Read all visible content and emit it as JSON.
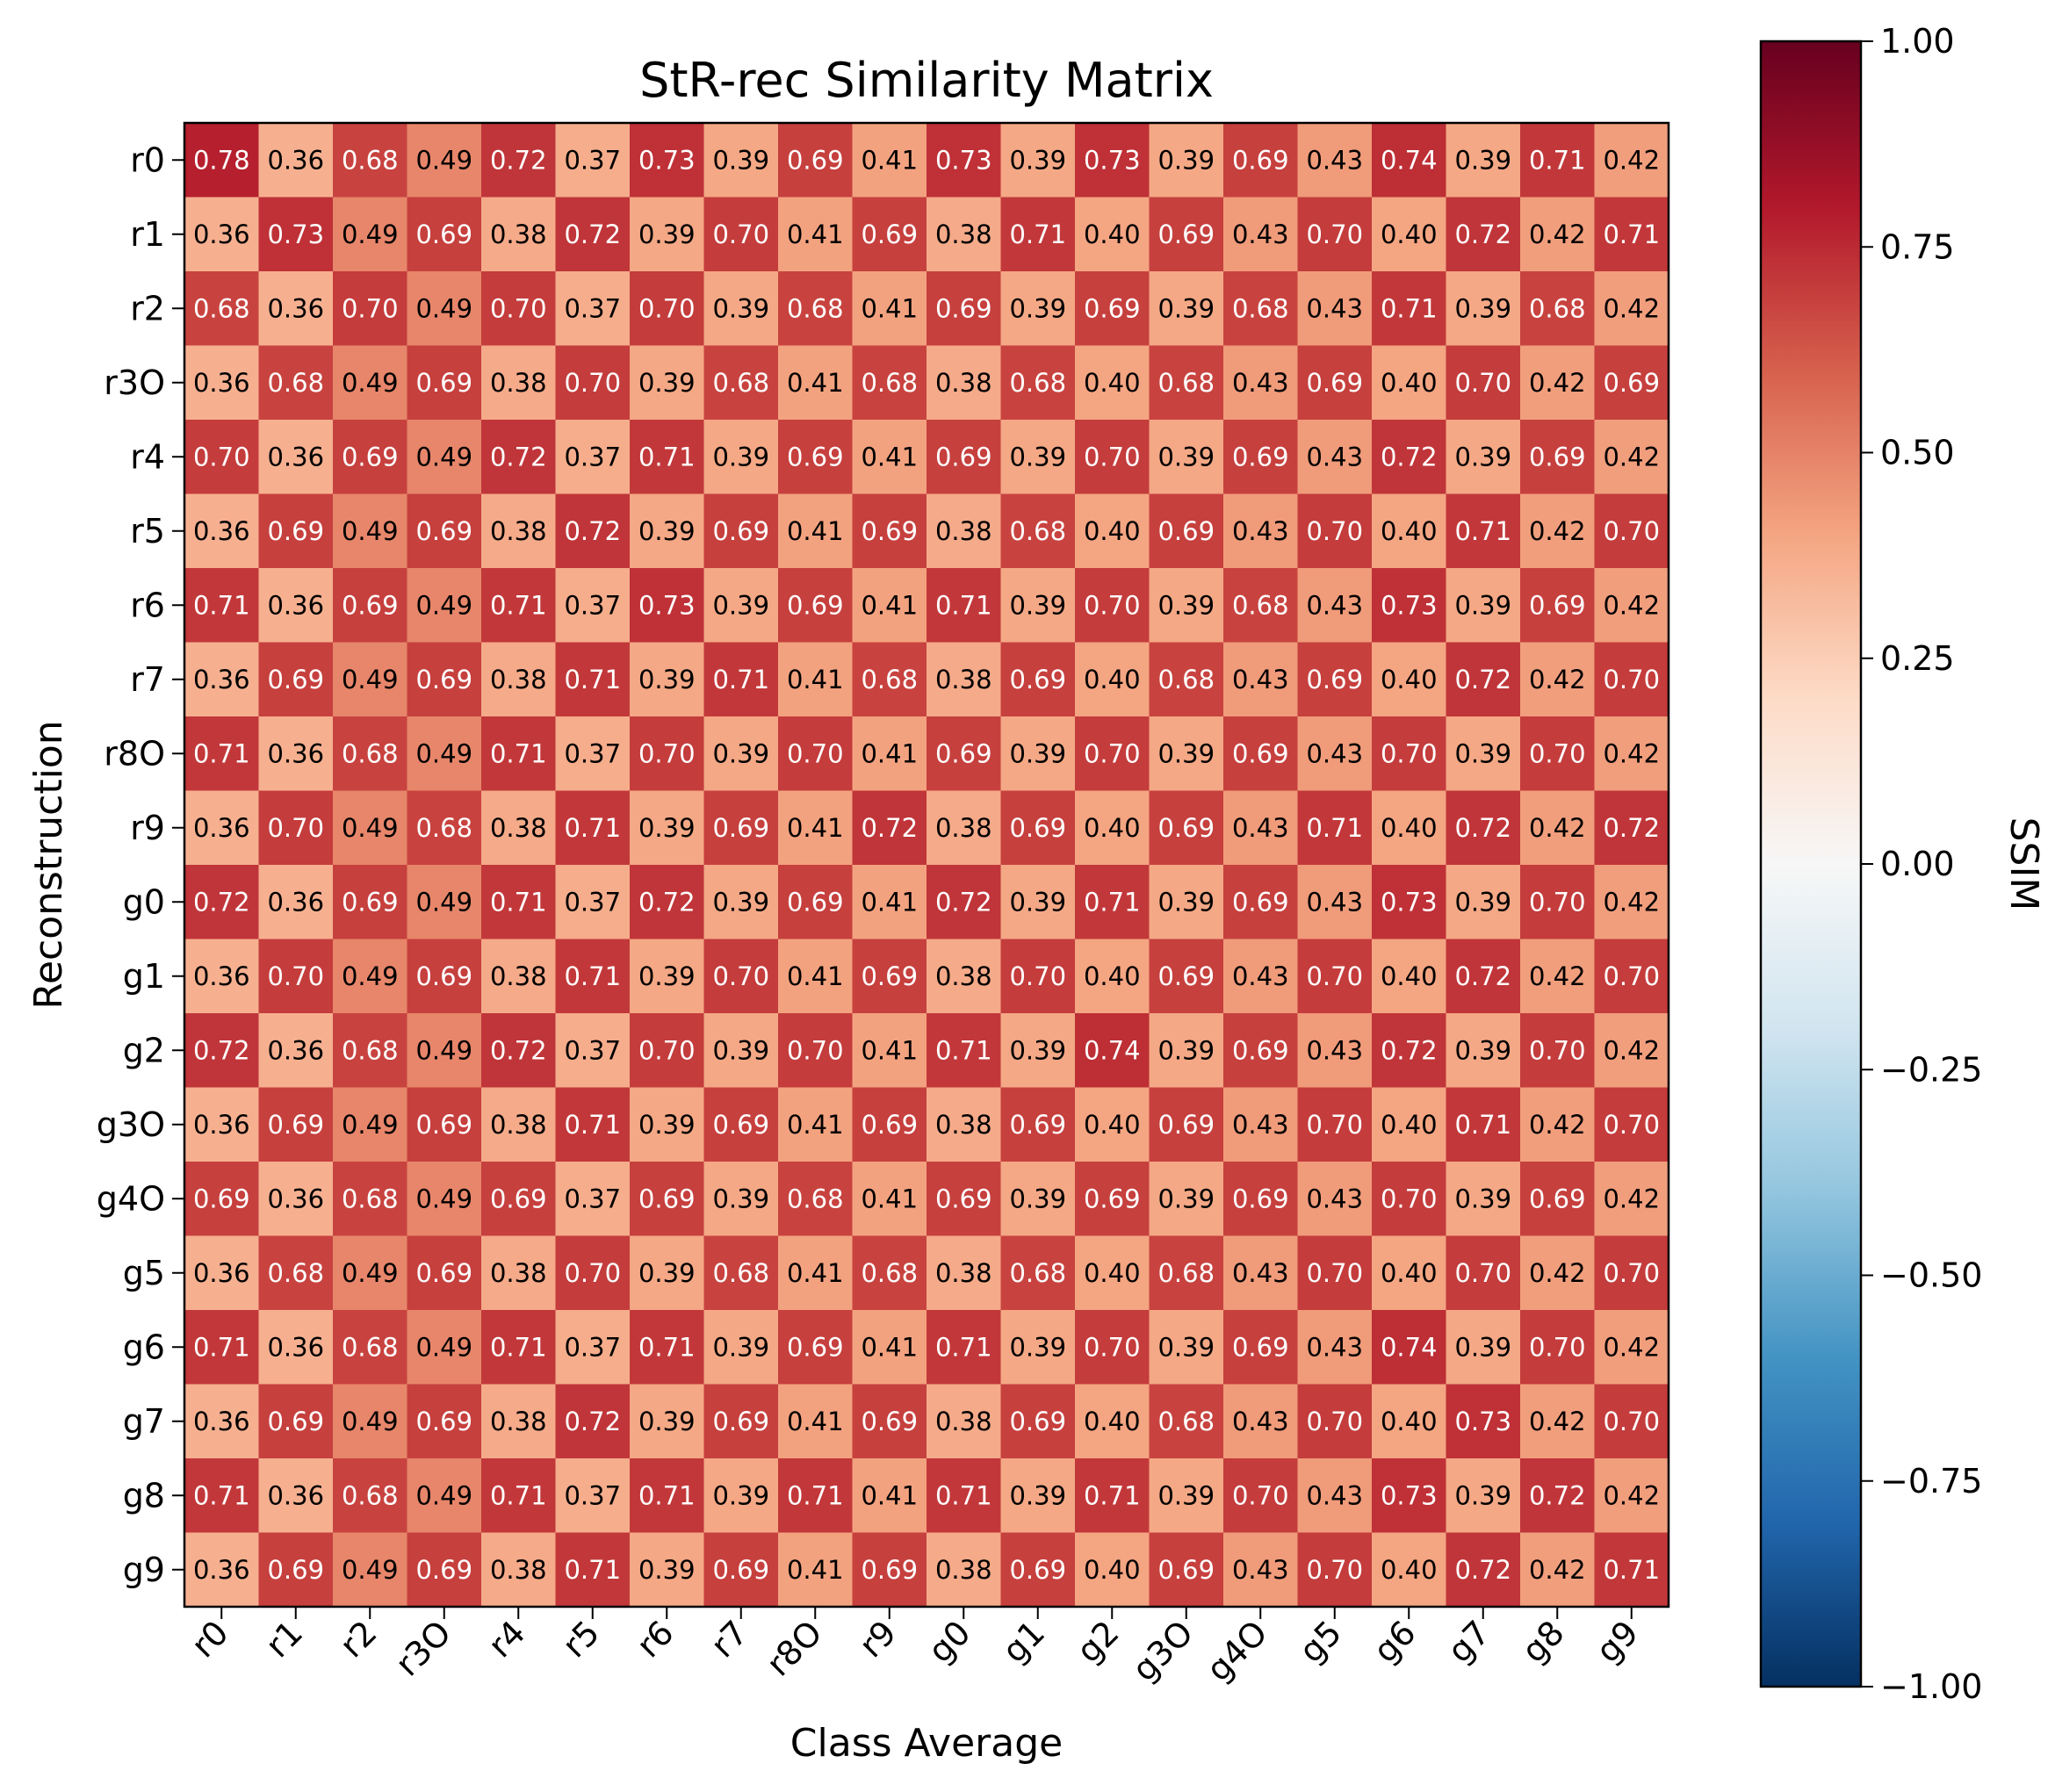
{
  "chart_data": {
    "type": "heatmap",
    "title": "StR-rec Similarity Matrix",
    "xlabel": "Class Average",
    "ylabel": "Reconstruction",
    "x_categories": [
      "r0",
      "r1",
      "r2",
      "r3O",
      "r4",
      "r5",
      "r6",
      "r7",
      "r8O",
      "r9",
      "g0",
      "g1",
      "g2",
      "g3O",
      "g4O",
      "g5",
      "g6",
      "g7",
      "g8",
      "g9"
    ],
    "y_categories": [
      "r0",
      "r1",
      "r2",
      "r3O",
      "r4",
      "r5",
      "r6",
      "r7",
      "r8O",
      "r9",
      "g0",
      "g1",
      "g2",
      "g3O",
      "g4O",
      "g5",
      "g6",
      "g7",
      "g8",
      "g9"
    ],
    "values": [
      [
        0.78,
        0.36,
        0.68,
        0.49,
        0.72,
        0.37,
        0.73,
        0.39,
        0.69,
        0.41,
        0.73,
        0.39,
        0.73,
        0.39,
        0.69,
        0.43,
        0.74,
        0.39,
        0.71,
        0.42
      ],
      [
        0.36,
        0.73,
        0.49,
        0.69,
        0.38,
        0.72,
        0.39,
        0.7,
        0.41,
        0.69,
        0.38,
        0.71,
        0.4,
        0.69,
        0.43,
        0.7,
        0.4,
        0.72,
        0.42,
        0.71
      ],
      [
        0.68,
        0.36,
        0.7,
        0.49,
        0.7,
        0.37,
        0.7,
        0.39,
        0.68,
        0.41,
        0.69,
        0.39,
        0.69,
        0.39,
        0.68,
        0.43,
        0.71,
        0.39,
        0.68,
        0.42
      ],
      [
        0.36,
        0.68,
        0.49,
        0.69,
        0.38,
        0.7,
        0.39,
        0.68,
        0.41,
        0.68,
        0.38,
        0.68,
        0.4,
        0.68,
        0.43,
        0.69,
        0.4,
        0.7,
        0.42,
        0.69
      ],
      [
        0.7,
        0.36,
        0.69,
        0.49,
        0.72,
        0.37,
        0.71,
        0.39,
        0.69,
        0.41,
        0.69,
        0.39,
        0.7,
        0.39,
        0.69,
        0.43,
        0.72,
        0.39,
        0.69,
        0.42
      ],
      [
        0.36,
        0.69,
        0.49,
        0.69,
        0.38,
        0.72,
        0.39,
        0.69,
        0.41,
        0.69,
        0.38,
        0.68,
        0.4,
        0.69,
        0.43,
        0.7,
        0.4,
        0.71,
        0.42,
        0.7
      ],
      [
        0.71,
        0.36,
        0.69,
        0.49,
        0.71,
        0.37,
        0.73,
        0.39,
        0.69,
        0.41,
        0.71,
        0.39,
        0.7,
        0.39,
        0.68,
        0.43,
        0.73,
        0.39,
        0.69,
        0.42
      ],
      [
        0.36,
        0.69,
        0.49,
        0.69,
        0.38,
        0.71,
        0.39,
        0.71,
        0.41,
        0.68,
        0.38,
        0.69,
        0.4,
        0.68,
        0.43,
        0.69,
        0.4,
        0.72,
        0.42,
        0.7
      ],
      [
        0.71,
        0.36,
        0.68,
        0.49,
        0.71,
        0.37,
        0.7,
        0.39,
        0.7,
        0.41,
        0.69,
        0.39,
        0.7,
        0.39,
        0.69,
        0.43,
        0.7,
        0.39,
        0.7,
        0.42
      ],
      [
        0.36,
        0.7,
        0.49,
        0.68,
        0.38,
        0.71,
        0.39,
        0.69,
        0.41,
        0.72,
        0.38,
        0.69,
        0.4,
        0.69,
        0.43,
        0.71,
        0.4,
        0.72,
        0.42,
        0.72
      ],
      [
        0.72,
        0.36,
        0.69,
        0.49,
        0.71,
        0.37,
        0.72,
        0.39,
        0.69,
        0.41,
        0.72,
        0.39,
        0.71,
        0.39,
        0.69,
        0.43,
        0.73,
        0.39,
        0.7,
        0.42
      ],
      [
        0.36,
        0.7,
        0.49,
        0.69,
        0.38,
        0.71,
        0.39,
        0.7,
        0.41,
        0.69,
        0.38,
        0.7,
        0.4,
        0.69,
        0.43,
        0.7,
        0.4,
        0.72,
        0.42,
        0.7
      ],
      [
        0.72,
        0.36,
        0.68,
        0.49,
        0.72,
        0.37,
        0.7,
        0.39,
        0.7,
        0.41,
        0.71,
        0.39,
        0.74,
        0.39,
        0.69,
        0.43,
        0.72,
        0.39,
        0.7,
        0.42
      ],
      [
        0.36,
        0.69,
        0.49,
        0.69,
        0.38,
        0.71,
        0.39,
        0.69,
        0.41,
        0.69,
        0.38,
        0.69,
        0.4,
        0.69,
        0.43,
        0.7,
        0.4,
        0.71,
        0.42,
        0.7
      ],
      [
        0.69,
        0.36,
        0.68,
        0.49,
        0.69,
        0.37,
        0.69,
        0.39,
        0.68,
        0.41,
        0.69,
        0.39,
        0.69,
        0.39,
        0.69,
        0.43,
        0.7,
        0.39,
        0.69,
        0.42
      ],
      [
        0.36,
        0.68,
        0.49,
        0.69,
        0.38,
        0.7,
        0.39,
        0.68,
        0.41,
        0.68,
        0.38,
        0.68,
        0.4,
        0.68,
        0.43,
        0.7,
        0.4,
        0.7,
        0.42,
        0.7
      ],
      [
        0.71,
        0.36,
        0.68,
        0.49,
        0.71,
        0.37,
        0.71,
        0.39,
        0.69,
        0.41,
        0.71,
        0.39,
        0.7,
        0.39,
        0.69,
        0.43,
        0.74,
        0.39,
        0.7,
        0.42
      ],
      [
        0.36,
        0.69,
        0.49,
        0.69,
        0.38,
        0.72,
        0.39,
        0.69,
        0.41,
        0.69,
        0.38,
        0.69,
        0.4,
        0.68,
        0.43,
        0.7,
        0.4,
        0.73,
        0.42,
        0.7
      ],
      [
        0.71,
        0.36,
        0.68,
        0.49,
        0.71,
        0.37,
        0.71,
        0.39,
        0.71,
        0.41,
        0.71,
        0.39,
        0.71,
        0.39,
        0.7,
        0.43,
        0.73,
        0.39,
        0.72,
        0.42
      ],
      [
        0.36,
        0.69,
        0.49,
        0.69,
        0.38,
        0.71,
        0.39,
        0.69,
        0.41,
        0.69,
        0.38,
        0.69,
        0.4,
        0.69,
        0.43,
        0.7,
        0.4,
        0.72,
        0.42,
        0.71
      ]
    ],
    "vmin": -1.0,
    "vmax": 1.0,
    "colormap": "RdBu_r",
    "colorbar": {
      "label": "SSIM",
      "ticks": [
        1.0,
        0.75,
        0.5,
        0.25,
        0.0,
        -0.25,
        -0.5,
        -0.75,
        -1.0
      ],
      "tick_labels": [
        "1.00",
        "0.75",
        "0.50",
        "0.25",
        "0.00",
        "−0.25",
        "−0.50",
        "−0.75",
        "−1.00"
      ]
    },
    "annotations": "cell values shown with 2 decimals",
    "grid": false
  }
}
